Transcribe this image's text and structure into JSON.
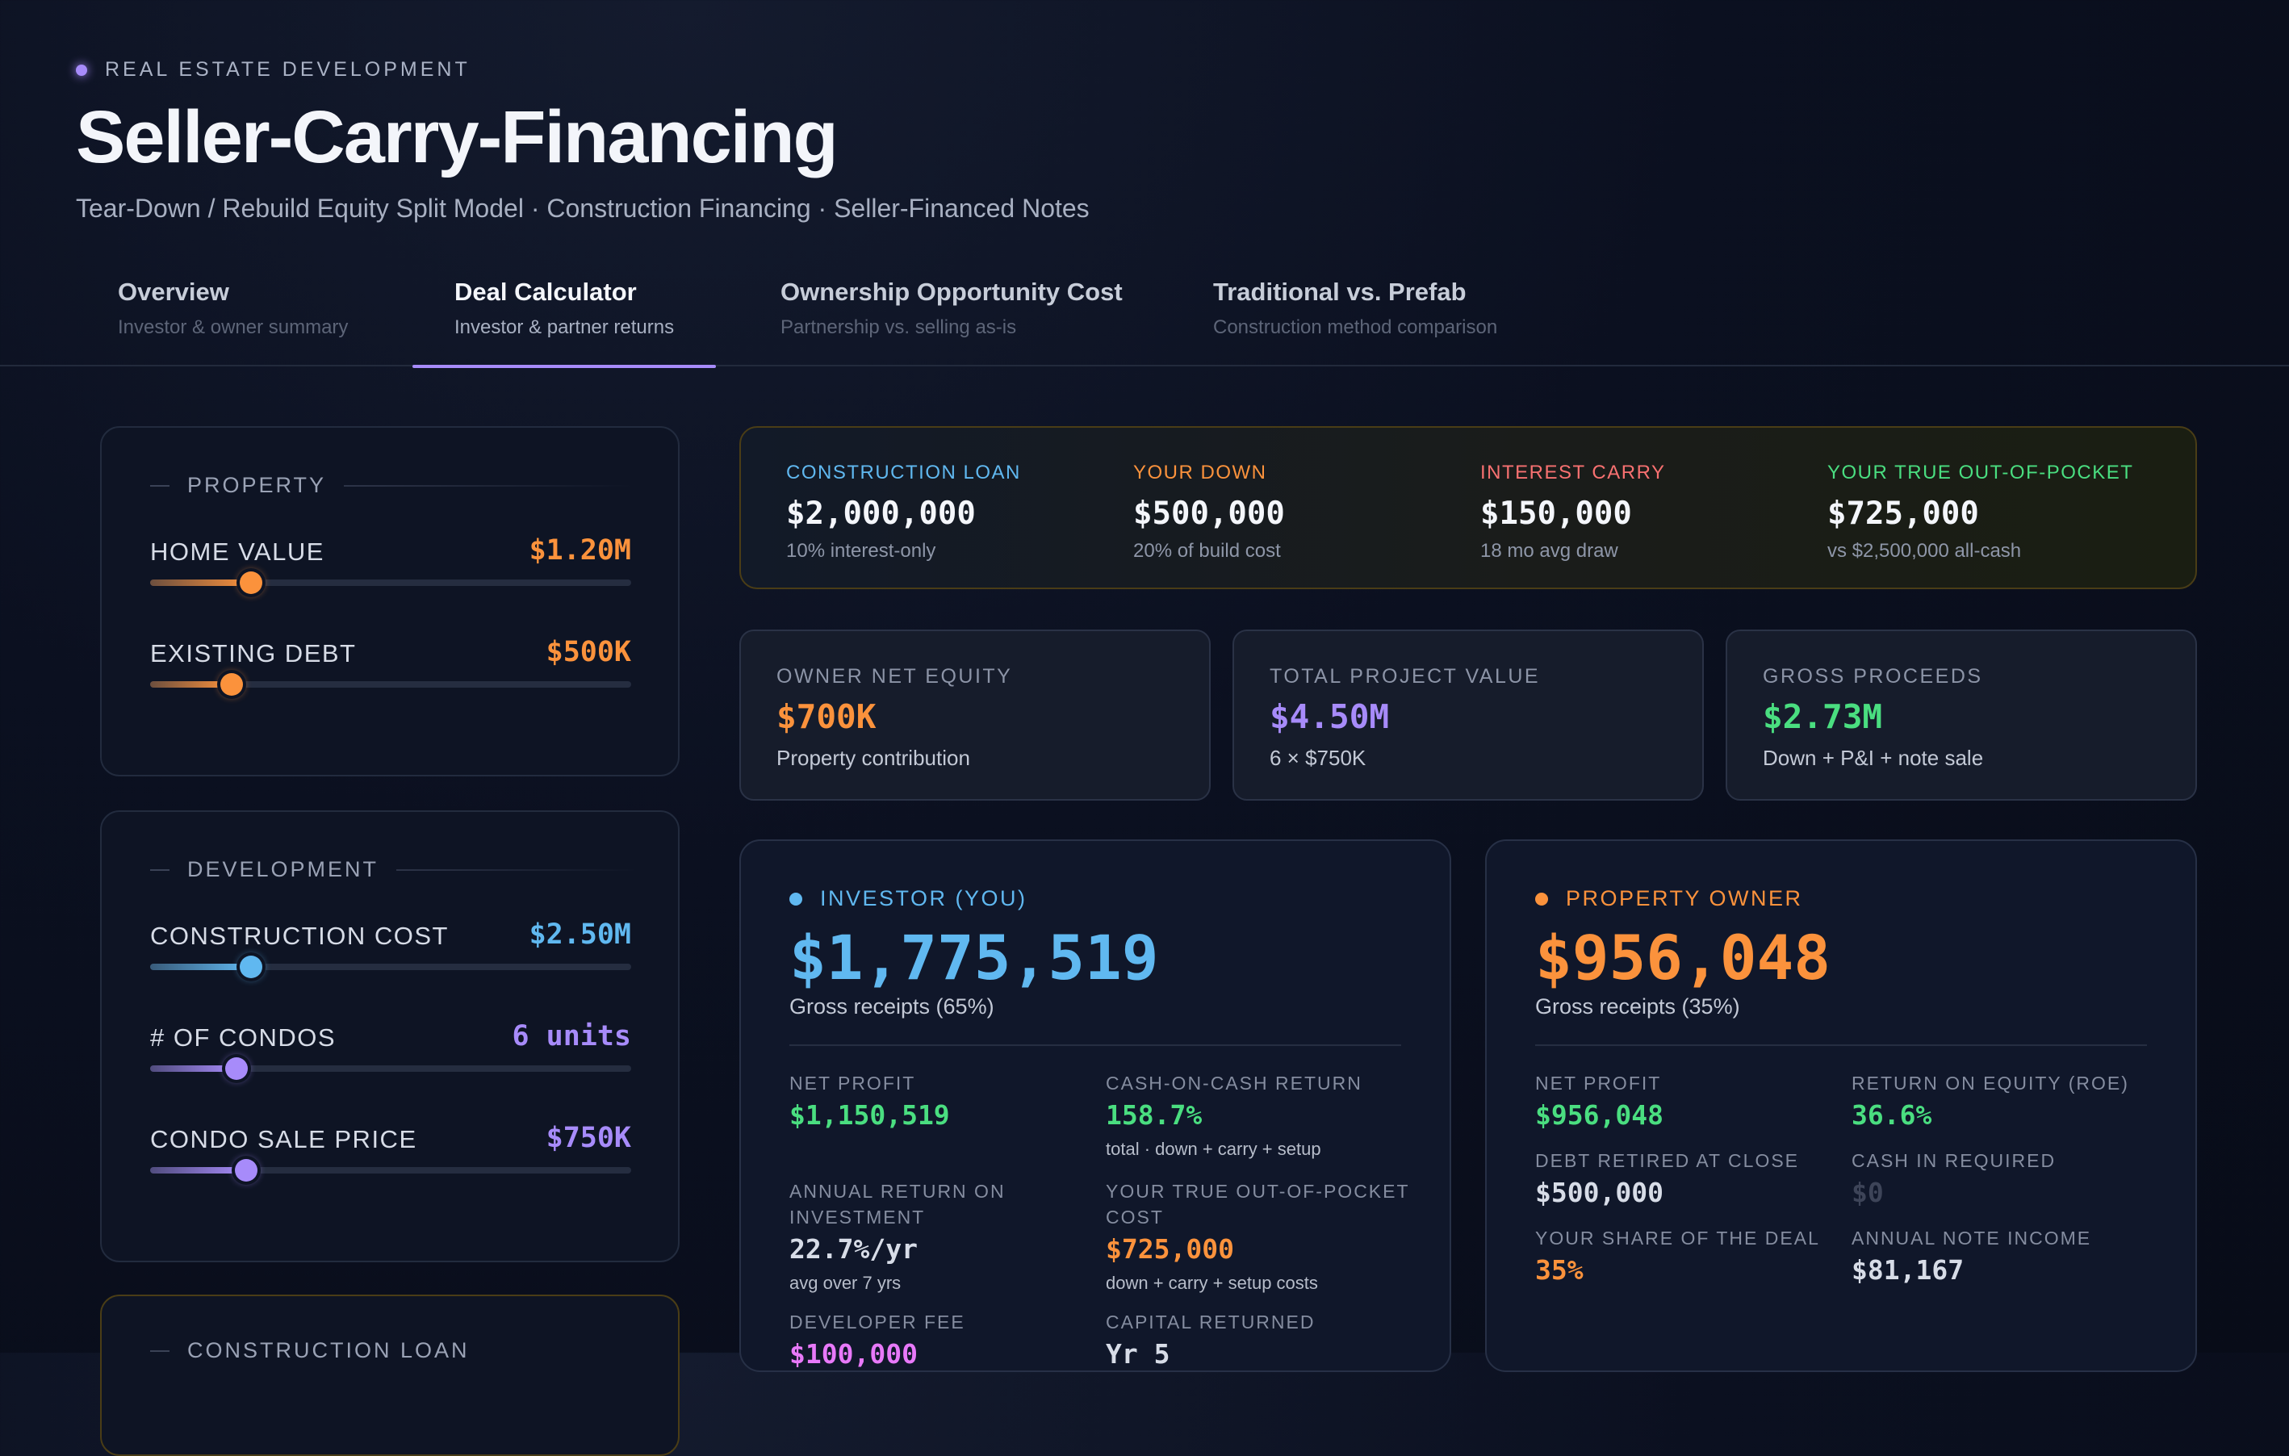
{
  "header": {
    "eyebrow": "REAL ESTATE DEVELOPMENT",
    "title": "Seller-Carry-Financing",
    "subtitle": "Tear-Down / Rebuild Equity Split Model · Construction Financing · Seller-Financed Notes"
  },
  "tabs": [
    {
      "label": "Overview",
      "sub": "Investor & owner summary"
    },
    {
      "label": "Deal Calculator",
      "sub": "Investor & partner returns"
    },
    {
      "label": "Ownership Opportunity Cost",
      "sub": "Partnership vs. selling as-is"
    },
    {
      "label": "Traditional vs. Prefab",
      "sub": "Construction method comparison"
    }
  ],
  "active_tab": "Deal Calculator",
  "property_panel": {
    "title": "PROPERTY",
    "home_value": {
      "label": "HOME VALUE",
      "value": "$1.20M",
      "level": 0.21
    },
    "existing_debt": {
      "label": "EXISTING DEBT",
      "value": "$500K",
      "level": 0.17
    }
  },
  "development_panel": {
    "title": "DEVELOPMENT",
    "construction_cost": {
      "label": "CONSTRUCTION COST",
      "value": "$2.50M",
      "level": 0.21
    },
    "condos": {
      "label": "# OF CONDOS",
      "value": "6 units",
      "level": 0.18
    },
    "sale_price": {
      "label": "CONDO SALE PRICE",
      "value": "$750K",
      "level": 0.2
    }
  },
  "loan_panel": {
    "title": "CONSTRUCTION LOAN"
  },
  "summary": {
    "loan": {
      "label": "CONSTRUCTION LOAN",
      "value": "$2,000,000",
      "sub": "10% interest-only"
    },
    "down": {
      "label": "YOUR DOWN",
      "value": "$500,000",
      "sub": "20% of build cost"
    },
    "interest": {
      "label": "INTEREST CARRY",
      "value": "$150,000",
      "sub": "18 mo avg draw"
    },
    "oop": {
      "label": "YOUR TRUE OUT-OF-POCKET",
      "value": "$725,000",
      "sub": "vs $2,500,000 all-cash"
    }
  },
  "stats": {
    "equity": {
      "label": "OWNER NET EQUITY",
      "value": "$700K",
      "sub": "Property contribution"
    },
    "project": {
      "label": "TOTAL PROJECT VALUE",
      "value": "$4.50M",
      "sub": "6 × $750K"
    },
    "gross": {
      "label": "GROSS PROCEEDS",
      "value": "$2.73M",
      "sub": "Down + P&I + note sale"
    }
  },
  "investor": {
    "title": "INVESTOR (YOU)",
    "amount": "$1,775,519",
    "amount_sub": "Gross receipts (65%)",
    "net_profit": {
      "label": "NET PROFIT",
      "value": "$1,150,519"
    },
    "coc": {
      "label": "CASH-ON-CASH RETURN",
      "value": "158.7%",
      "sub": "total · down + carry + setup"
    },
    "annual": {
      "label": "ANNUAL RETURN ON INVESTMENT",
      "value": "22.7%/yr",
      "sub": "avg over 7 yrs"
    },
    "oop": {
      "label": "YOUR TRUE OUT-OF-POCKET COST",
      "value": "$725,000",
      "sub": "down + carry + setup costs"
    },
    "dev_fee": {
      "label": "DEVELOPER FEE",
      "value": "$100,000"
    },
    "capital": {
      "label": "CAPITAL RETURNED",
      "value": "Yr 5"
    }
  },
  "owner": {
    "title": "PROPERTY OWNER",
    "amount": "$956,048",
    "amount_sub": "Gross receipts (35%)",
    "net_profit": {
      "label": "NET PROFIT",
      "value": "$956,048"
    },
    "roe": {
      "label": "RETURN ON EQUITY (ROE)",
      "value": "36.6%"
    },
    "debt": {
      "label": "DEBT RETIRED AT CLOSE",
      "value": "$500,000"
    },
    "cash_in": {
      "label": "CASH IN REQUIRED",
      "value": "$0"
    },
    "share": {
      "label": "YOUR SHARE OF THE DEAL",
      "value": "35%"
    },
    "note_income": {
      "label": "ANNUAL NOTE INCOME",
      "value": "$81,167"
    }
  },
  "colors": {
    "orange": "#fb923c",
    "blue": "#60b8f0",
    "purple": "#a78bfa",
    "green": "#4ade80",
    "red": "#f87171",
    "pink": "#e879f9"
  }
}
